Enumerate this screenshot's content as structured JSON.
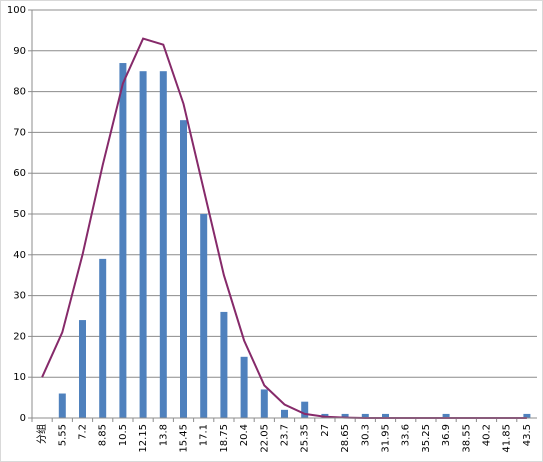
{
  "chart_data": {
    "type": "bar-line",
    "categories": [
      "分组",
      5.55,
      7.2,
      8.85,
      10.5,
      12.15,
      13.8,
      15.45,
      17.1,
      18.75,
      20.4,
      22.05,
      23.7,
      25.35,
      27,
      28.65,
      30.3,
      31.95,
      33.6,
      35.25,
      36.9,
      38.55,
      40.2,
      41.85,
      43.5
    ],
    "series": [
      {
        "type": "bar",
        "color": "#4f81bd",
        "values": [
          null,
          6,
          24,
          39,
          87,
          85,
          85,
          73,
          50,
          26,
          15,
          7,
          2,
          4,
          1,
          1,
          1,
          1,
          0,
          0,
          1,
          0,
          0,
          0,
          1
        ]
      },
      {
        "type": "line",
        "color": "#862a6a",
        "values": [
          10,
          21,
          40,
          62,
          82,
          93,
          91.5,
          77,
          56,
          35,
          19,
          8,
          3.3,
          1,
          0.3,
          0.1,
          0,
          0,
          0,
          0,
          0,
          0,
          0,
          0,
          0
        ]
      }
    ],
    "ylim": [
      0,
      100
    ],
    "yticks": [
      0,
      10,
      20,
      30,
      40,
      50,
      60,
      70,
      80,
      90,
      100
    ],
    "grid": true
  }
}
